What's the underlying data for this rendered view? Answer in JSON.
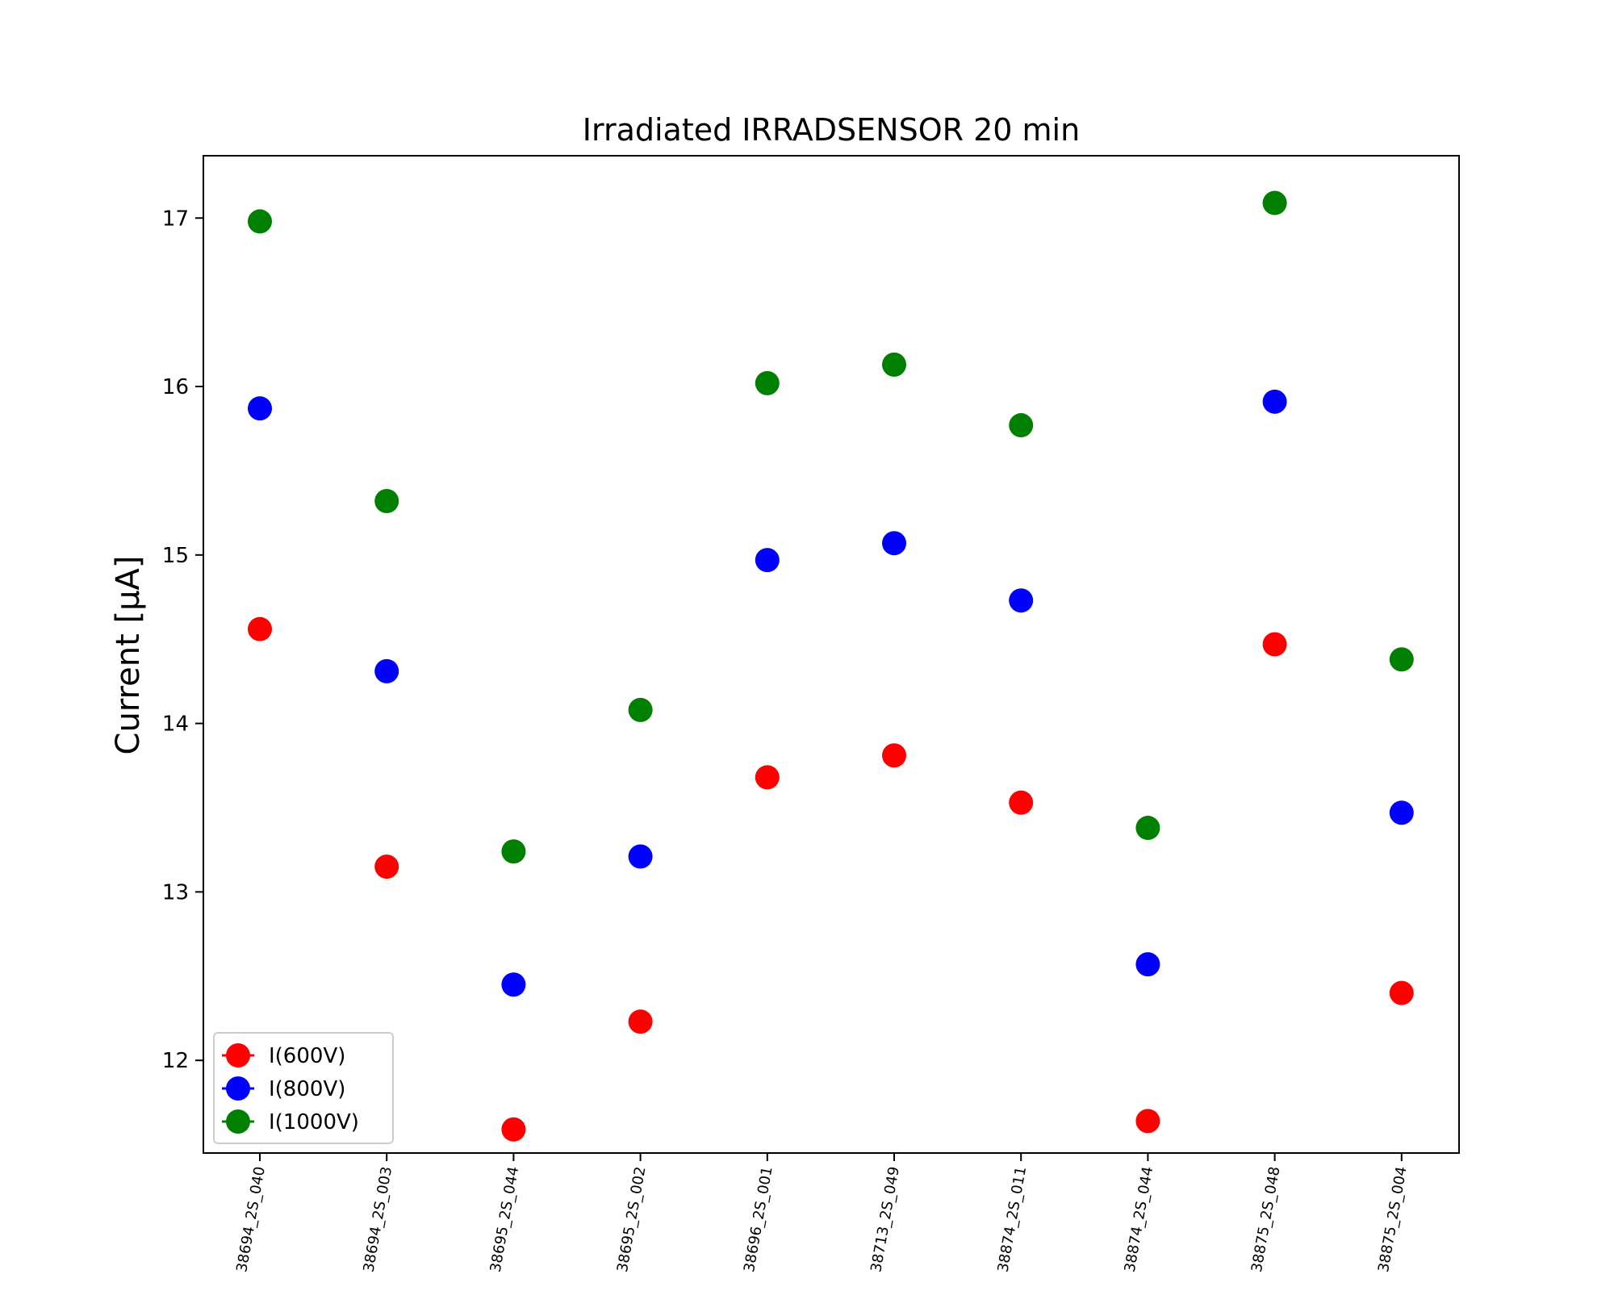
{
  "chart_data": {
    "type": "scatter",
    "title": "Irradiated IRRADSENSOR 20 min",
    "xlabel": "",
    "ylabel": "Current [μA]",
    "categories": [
      "38694_2S_040",
      "38694_2S_003",
      "38695_2S_044",
      "38695_2S_002",
      "38696_2S_001",
      "38713_2S_049",
      "38874_2S_011",
      "38874_2S_044",
      "38875_2S_048",
      "38875_2S_004"
    ],
    "series": [
      {
        "name": "I(600V)",
        "color": "#ff0000",
        "values": [
          14.56,
          13.15,
          11.59,
          12.23,
          13.68,
          13.81,
          13.53,
          11.64,
          14.47,
          12.4
        ]
      },
      {
        "name": "I(800V)",
        "color": "#0000ff",
        "values": [
          15.87,
          14.31,
          12.45,
          13.21,
          14.97,
          15.07,
          14.73,
          12.57,
          15.91,
          13.47
        ]
      },
      {
        "name": "I(1000V)",
        "color": "#008000",
        "values": [
          16.98,
          15.32,
          13.24,
          14.08,
          16.02,
          16.13,
          15.77,
          13.38,
          17.09,
          14.38
        ]
      }
    ],
    "ylim": [
      11.45,
      17.37
    ],
    "yticks": [
      12,
      13,
      14,
      15,
      16,
      17
    ],
    "grid": false,
    "legend_position": "lower-left"
  }
}
